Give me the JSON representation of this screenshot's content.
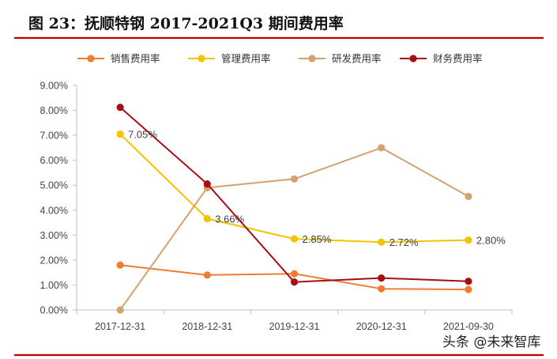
{
  "title": "图  23：抚顺特钢 2017-2021Q3 期间费用率",
  "accent_color": "#c00000",
  "watermark": "头条 @未来智库",
  "chart_data": {
    "type": "line",
    "categories": [
      "2017-12-31",
      "2018-12-31",
      "2019-12-31",
      "2020-12-31",
      "2021-09-30"
    ],
    "ylim": [
      0,
      9
    ],
    "yticks": [
      0,
      1,
      2,
      3,
      4,
      5,
      6,
      7,
      8,
      9
    ],
    "ytick_labels": [
      "0.00%",
      "1.00%",
      "2.00%",
      "3.00%",
      "4.00%",
      "5.00%",
      "6.00%",
      "7.00%",
      "8.00%",
      "9.00%"
    ],
    "legend_position": "top",
    "grid": false,
    "series": [
      {
        "name": "销售费用率",
        "color": "#ed7d31",
        "values": [
          1.8,
          1.4,
          1.45,
          0.85,
          0.82
        ]
      },
      {
        "name": "管理费用率",
        "color": "#f2c500",
        "values": [
          7.05,
          3.66,
          2.85,
          2.72,
          2.8
        ]
      },
      {
        "name": "研发费用率",
        "color": "#d4a26f",
        "values": [
          0.0,
          4.9,
          5.25,
          6.5,
          4.55
        ]
      },
      {
        "name": "财务费用率",
        "color": "#a50f15",
        "values": [
          8.12,
          5.05,
          1.12,
          1.28,
          1.15
        ]
      }
    ],
    "annotations": [
      {
        "series": "管理费用率",
        "index": 0,
        "text": "7.05%"
      },
      {
        "series": "管理费用率",
        "index": 1,
        "text": "3.66%"
      },
      {
        "series": "管理费用率",
        "index": 2,
        "text": "2.85%"
      },
      {
        "series": "管理费用率",
        "index": 3,
        "text": "2.72%"
      },
      {
        "series": "管理费用率",
        "index": 4,
        "text": "2.80%"
      }
    ]
  }
}
